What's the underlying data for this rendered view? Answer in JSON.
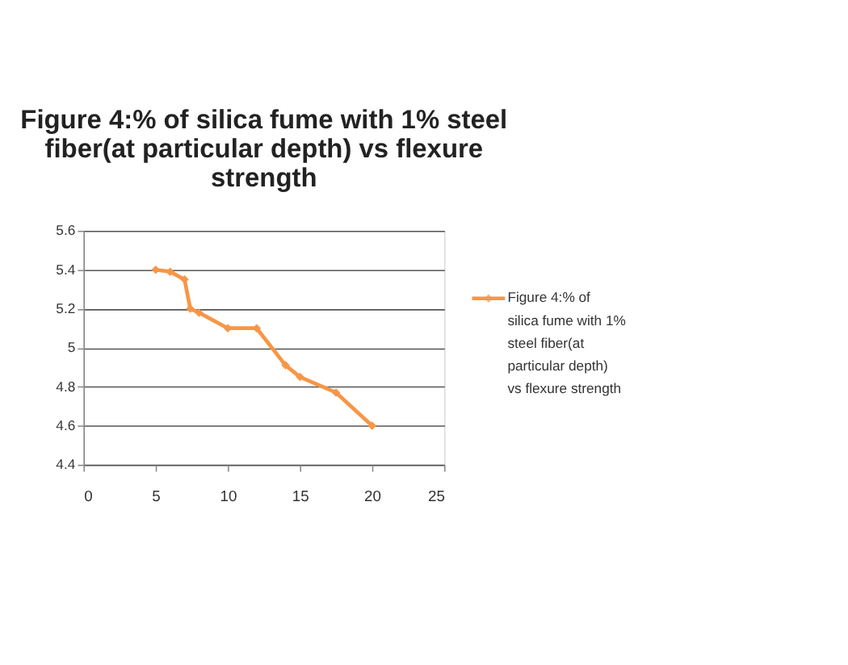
{
  "chart_data": {
    "type": "line",
    "title": "Figure 4:% of silica fume with 1% steel fiber(at particular depth) vs flexure strength",
    "x": [
      5,
      6,
      7,
      7.4,
      8,
      10,
      12,
      14,
      15,
      17.5,
      20
    ],
    "series": [
      {
        "name": "Figure 4:% of silica fume with 1% steel fiber(at particular depth) vs flexure strength",
        "color": "#f79646",
        "values": [
          5.4,
          5.39,
          5.35,
          5.2,
          5.18,
          5.1,
          5.1,
          4.91,
          4.85,
          4.77,
          4.6
        ]
      }
    ],
    "xlim": [
      0,
      25
    ],
    "xticks": [
      0,
      5,
      10,
      15,
      20,
      25
    ],
    "ylim": [
      4.4,
      5.6
    ],
    "yticks": [
      4.4,
      4.6,
      4.8,
      5,
      5.2,
      5.4,
      5.6
    ],
    "grid": "y",
    "legend": "right",
    "marker": "diamond",
    "line_style": "solid"
  }
}
